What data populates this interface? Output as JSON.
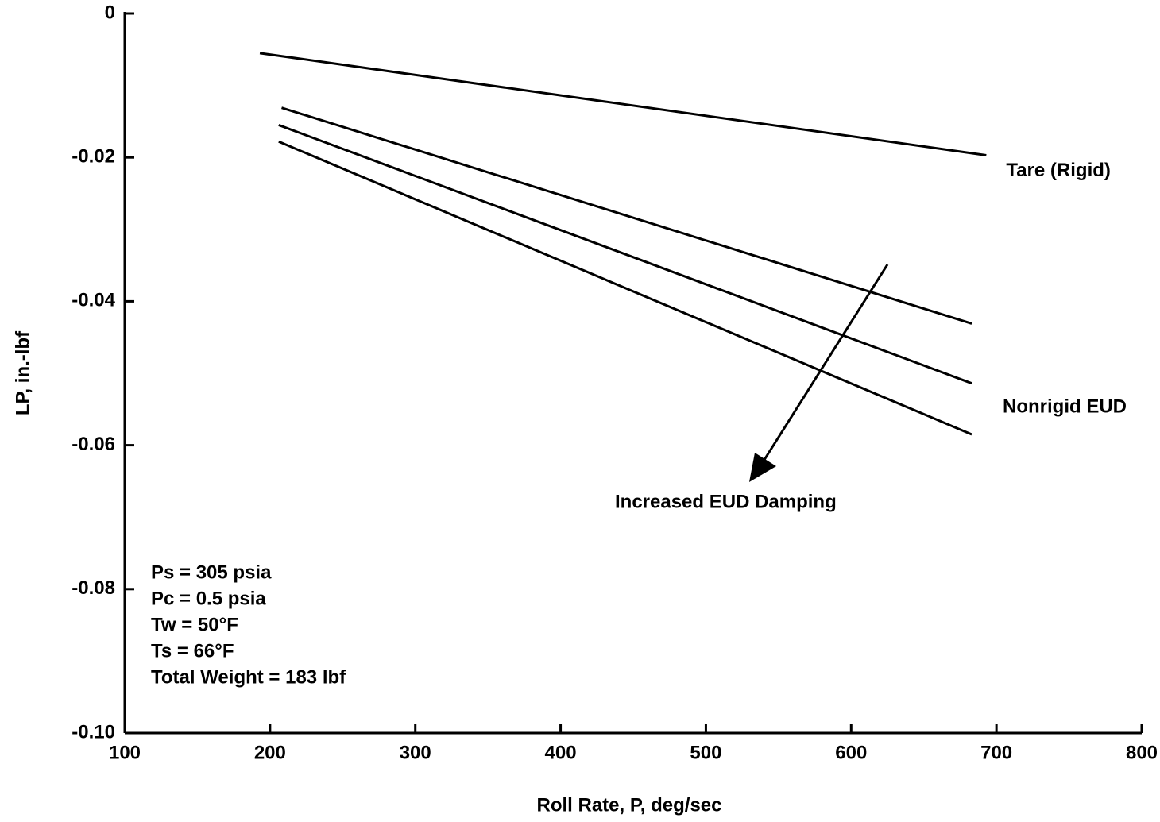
{
  "chart_data": {
    "type": "line",
    "xlabel": "Roll Rate, P, deg/sec",
    "ylabel": "LP, in.-lbf",
    "xlim": [
      100,
      800
    ],
    "xticks": [
      100,
      200,
      300,
      400,
      500,
      600,
      700,
      800
    ],
    "ylim": [
      -0.1,
      0
    ],
    "yticks": [
      0,
      -0.02,
      -0.04,
      -0.06,
      -0.08,
      {
        "value": -0.1,
        "label": "-0.10"
      }
    ],
    "series": [
      {
        "name": "Tare (Rigid)",
        "color": "#000000",
        "x": [
          193,
          693
        ],
        "values": [
          -0.0055,
          -0.0197
        ]
      },
      {
        "color": "#000000",
        "x": [
          208,
          683
        ],
        "values": [
          -0.0131,
          -0.0431
        ]
      },
      {
        "color": "#000000",
        "x": [
          206,
          683
        ],
        "values": [
          -0.0155,
          -0.0514
        ]
      },
      {
        "color": "#000000",
        "x": [
          206,
          683
        ],
        "values": [
          -0.0178,
          -0.0585
        ]
      }
    ],
    "annotations": [
      "Nonrigid EUD",
      "Increased EUD Damping"
    ],
    "conditions": [
      "Ps = 305 psia",
      "Pc = 0.5 psia",
      "Tw = 50°F",
      "Ts = 66°F",
      "Total Weight = 183 lbf"
    ]
  }
}
